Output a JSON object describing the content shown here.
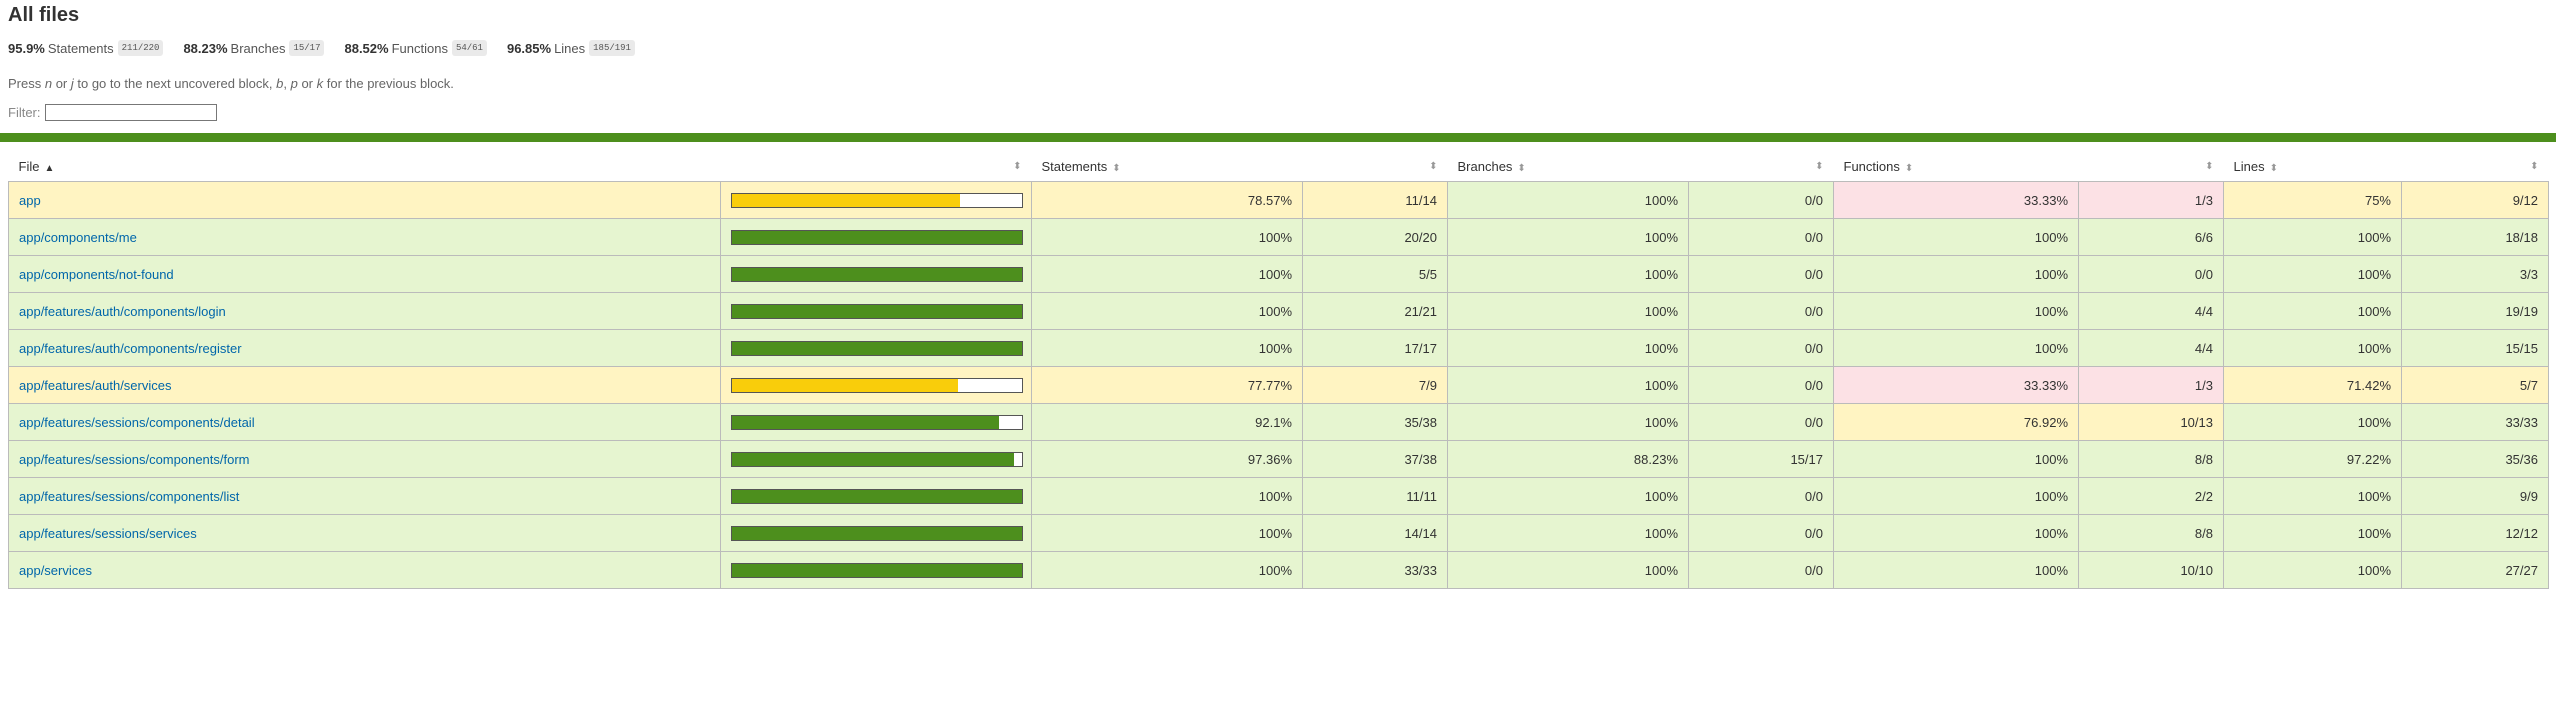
{
  "title": "All files",
  "summary": [
    {
      "pct": "95.9%",
      "label": "Statements",
      "fraction": "211/220"
    },
    {
      "pct": "88.23%",
      "label": "Branches",
      "fraction": "15/17"
    },
    {
      "pct": "88.52%",
      "label": "Functions",
      "fraction": "54/61"
    },
    {
      "pct": "96.85%",
      "label": "Lines",
      "fraction": "185/191"
    }
  ],
  "hint": {
    "t1": "Press ",
    "k1": "n",
    "t2": " or ",
    "k2": "j",
    "t3": " to go to the next uncovered block, ",
    "k3": "b",
    "t4": ", ",
    "k4": "p",
    "t5": " or ",
    "k5": "k",
    "t6": " for the previous block."
  },
  "filter": {
    "label": "Filter:",
    "value": ""
  },
  "colors": {
    "high": "#4d8f1d",
    "medium": "#f9cd0b",
    "low_bg": "#fce1e5",
    "medium_bg": "#fff4c2",
    "high_bg": "#e6f5d0"
  },
  "columns": {
    "file": "File",
    "statements": "Statements",
    "branches": "Branches",
    "functions": "Functions",
    "lines": "Lines"
  },
  "rows": [
    {
      "file": "app",
      "coverage": 0.7857,
      "level": "medium",
      "statements": "78.57%",
      "statements_frac": "11/14",
      "statements_level": "medium",
      "branches": "100%",
      "branches_frac": "0/0",
      "branches_level": "high",
      "functions": "33.33%",
      "functions_frac": "1/3",
      "functions_level": "low",
      "lines": "75%",
      "lines_frac": "9/12",
      "lines_level": "medium"
    },
    {
      "file": "app/components/me",
      "coverage": 1,
      "level": "high",
      "statements": "100%",
      "statements_frac": "20/20",
      "statements_level": "high",
      "branches": "100%",
      "branches_frac": "0/0",
      "branches_level": "high",
      "functions": "100%",
      "functions_frac": "6/6",
      "functions_level": "high",
      "lines": "100%",
      "lines_frac": "18/18",
      "lines_level": "high"
    },
    {
      "file": "app/components/not-found",
      "coverage": 1,
      "level": "high",
      "statements": "100%",
      "statements_frac": "5/5",
      "statements_level": "high",
      "branches": "100%",
      "branches_frac": "0/0",
      "branches_level": "high",
      "functions": "100%",
      "functions_frac": "0/0",
      "functions_level": "high",
      "lines": "100%",
      "lines_frac": "3/3",
      "lines_level": "high"
    },
    {
      "file": "app/features/auth/components/login",
      "coverage": 1,
      "level": "high",
      "statements": "100%",
      "statements_frac": "21/21",
      "statements_level": "high",
      "branches": "100%",
      "branches_frac": "0/0",
      "branches_level": "high",
      "functions": "100%",
      "functions_frac": "4/4",
      "functions_level": "high",
      "lines": "100%",
      "lines_frac": "19/19",
      "lines_level": "high"
    },
    {
      "file": "app/features/auth/components/register",
      "coverage": 1,
      "level": "high",
      "statements": "100%",
      "statements_frac": "17/17",
      "statements_level": "high",
      "branches": "100%",
      "branches_frac": "0/0",
      "branches_level": "high",
      "functions": "100%",
      "functions_frac": "4/4",
      "functions_level": "high",
      "lines": "100%",
      "lines_frac": "15/15",
      "lines_level": "high"
    },
    {
      "file": "app/features/auth/services",
      "coverage": 0.7777,
      "level": "medium",
      "statements": "77.77%",
      "statements_frac": "7/9",
      "statements_level": "medium",
      "branches": "100%",
      "branches_frac": "0/0",
      "branches_level": "high",
      "functions": "33.33%",
      "functions_frac": "1/3",
      "functions_level": "low",
      "lines": "71.42%",
      "lines_frac": "5/7",
      "lines_level": "medium"
    },
    {
      "file": "app/features/sessions/components/detail",
      "coverage": 0.921,
      "level": "high",
      "statements": "92.1%",
      "statements_frac": "35/38",
      "statements_level": "high",
      "branches": "100%",
      "branches_frac": "0/0",
      "branches_level": "high",
      "functions": "76.92%",
      "functions_frac": "10/13",
      "functions_level": "medium",
      "lines": "100%",
      "lines_frac": "33/33",
      "lines_level": "high"
    },
    {
      "file": "app/features/sessions/components/form",
      "coverage": 0.9736,
      "level": "high",
      "statements": "97.36%",
      "statements_frac": "37/38",
      "statements_level": "high",
      "branches": "88.23%",
      "branches_frac": "15/17",
      "branches_level": "high",
      "functions": "100%",
      "functions_frac": "8/8",
      "functions_level": "high",
      "lines": "97.22%",
      "lines_frac": "35/36",
      "lines_level": "high"
    },
    {
      "file": "app/features/sessions/components/list",
      "coverage": 1,
      "level": "high",
      "statements": "100%",
      "statements_frac": "11/11",
      "statements_level": "high",
      "branches": "100%",
      "branches_frac": "0/0",
      "branches_level": "high",
      "functions": "100%",
      "functions_frac": "2/2",
      "functions_level": "high",
      "lines": "100%",
      "lines_frac": "9/9",
      "lines_level": "high"
    },
    {
      "file": "app/features/sessions/services",
      "coverage": 1,
      "level": "high",
      "statements": "100%",
      "statements_frac": "14/14",
      "statements_level": "high",
      "branches": "100%",
      "branches_frac": "0/0",
      "branches_level": "high",
      "functions": "100%",
      "functions_frac": "8/8",
      "functions_level": "high",
      "lines": "100%",
      "lines_frac": "12/12",
      "lines_level": "high"
    },
    {
      "file": "app/services",
      "coverage": 1,
      "level": "high",
      "statements": "100%",
      "statements_frac": "33/33",
      "statements_level": "high",
      "branches": "100%",
      "branches_frac": "0/0",
      "branches_level": "high",
      "functions": "100%",
      "functions_frac": "10/10",
      "functions_level": "high",
      "lines": "100%",
      "lines_frac": "27/27",
      "lines_level": "high"
    }
  ]
}
